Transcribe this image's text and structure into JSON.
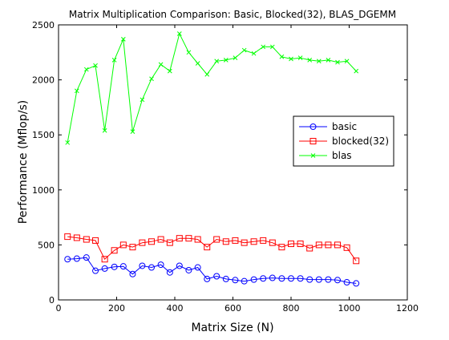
{
  "chart_data": {
    "type": "line",
    "title": "Matrix Multiplication Comparison: Basic, Blocked(32), BLAS_DGEMM",
    "xlabel": "Matrix Size (N)",
    "ylabel": "Performance (Mflop/s)",
    "xlim": [
      0,
      1200
    ],
    "ylim": [
      0,
      2500
    ],
    "xticks": [
      0,
      200,
      400,
      600,
      800,
      1000,
      1200
    ],
    "yticks": [
      0,
      500,
      1000,
      1500,
      2000,
      2500
    ],
    "grid": false,
    "legend_position": "right",
    "x": [
      31,
      63,
      96,
      127,
      159,
      192,
      223,
      255,
      288,
      320,
      352,
      383,
      416,
      448,
      479,
      511,
      544,
      576,
      608,
      639,
      672,
      704,
      736,
      768,
      800,
      832,
      864,
      896,
      928,
      960,
      992,
      1024
    ],
    "series": [
      {
        "name": "basic",
        "color": "#0000ff",
        "marker": "circle",
        "values": [
          370,
          375,
          385,
          265,
          285,
          300,
          305,
          235,
          310,
          295,
          320,
          250,
          310,
          270,
          295,
          190,
          215,
          190,
          180,
          170,
          185,
          195,
          200,
          195,
          195,
          195,
          185,
          185,
          185,
          180,
          160,
          150
        ]
      },
      {
        "name": "blocked(32)",
        "color": "#ff0000",
        "marker": "square",
        "values": [
          575,
          565,
          550,
          540,
          370,
          450,
          500,
          480,
          520,
          530,
          550,
          520,
          560,
          560,
          550,
          480,
          550,
          530,
          540,
          520,
          530,
          540,
          520,
          480,
          510,
          510,
          470,
          500,
          500,
          500,
          475,
          355
        ]
      },
      {
        "name": "blas",
        "color": "#00ff00",
        "marker": "x",
        "values": [
          1430,
          1900,
          2095,
          2130,
          1540,
          2180,
          2370,
          1530,
          1820,
          2010,
          2140,
          2080,
          2420,
          2250,
          2150,
          2050,
          2170,
          2180,
          2200,
          2270,
          2240,
          2300,
          2300,
          2210,
          2190,
          2200,
          2180,
          2170,
          2180,
          2160,
          2170,
          2080
        ]
      }
    ]
  }
}
